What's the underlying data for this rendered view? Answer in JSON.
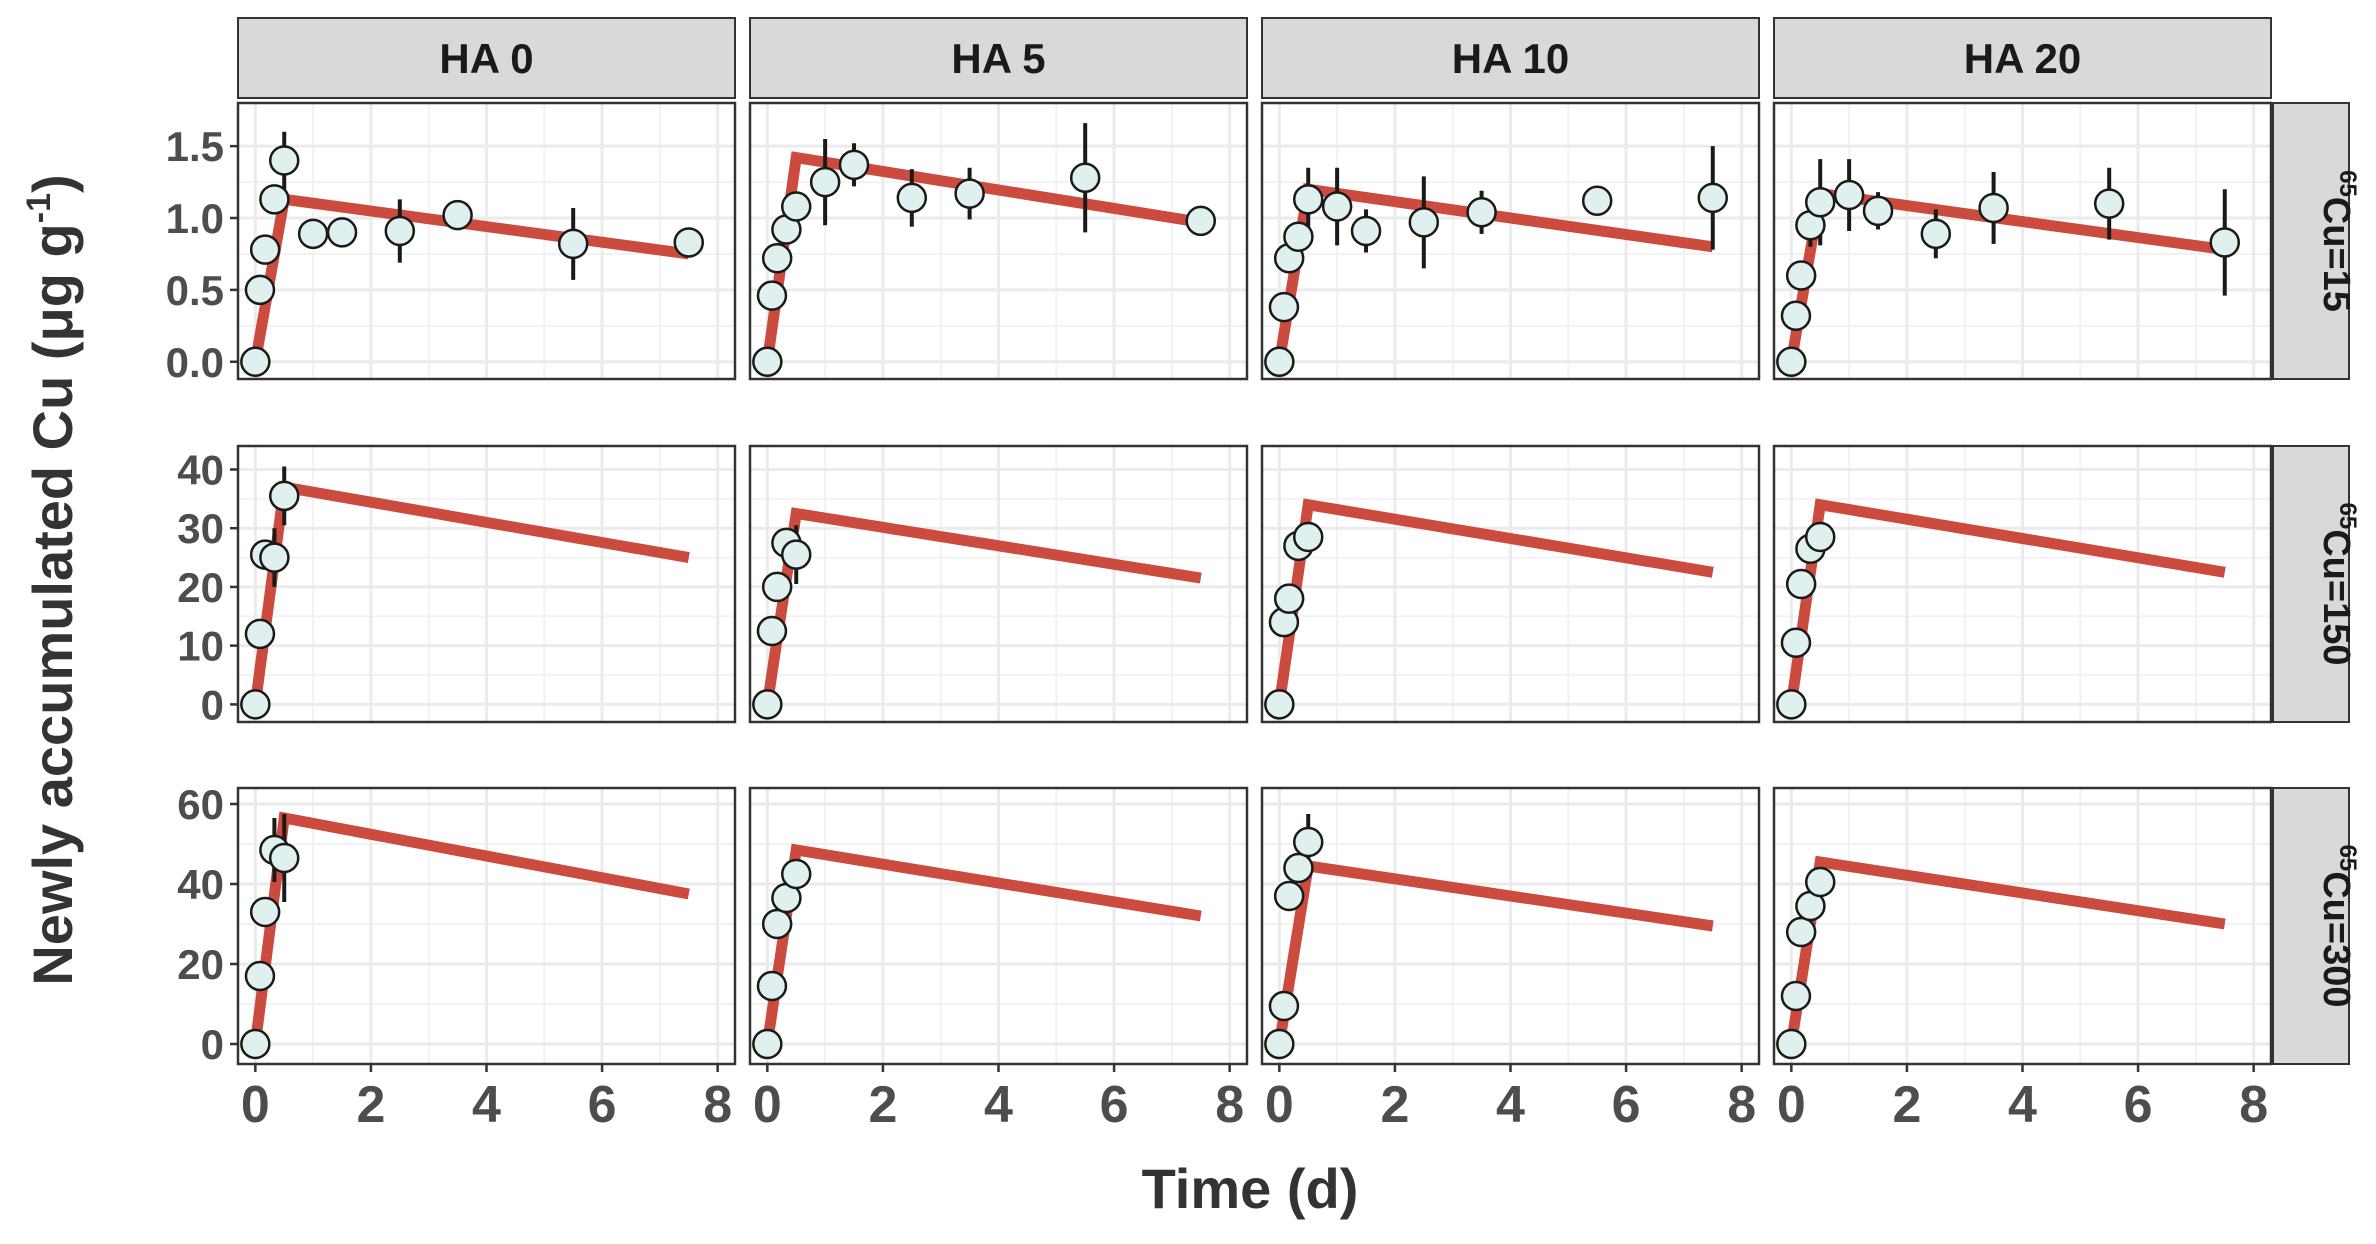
{
  "chart_data": {
    "type": "scatter",
    "xlabel": "Time (d)",
    "ylabel_main": "Newly accumulated Cu (μg g",
    "ylabel_sup": "-1",
    "ylabel_end": ")",
    "xlim": [
      -0.3,
      8.3
    ],
    "x_ticks": [
      0,
      2,
      4,
      6,
      8
    ],
    "columns": [
      "HA 0",
      "HA 5",
      "HA 10",
      "HA 20"
    ],
    "rows": [
      {
        "sup": "65",
        "label": "Cu=15",
        "ylim": [
          -0.12,
          1.8
        ],
        "ticks": [
          0.0,
          0.5,
          1.0,
          1.5
        ],
        "tick_labels": [
          "0.0",
          "0.5",
          "1.0",
          "1.5"
        ]
      },
      {
        "sup": "65",
        "label": "Cu=150",
        "ylim": [
          -3,
          44
        ],
        "ticks": [
          0,
          10,
          20,
          30,
          40
        ],
        "tick_labels": [
          "0",
          "10",
          "20",
          "30",
          "40"
        ]
      },
      {
        "sup": "65",
        "label": "Cu=300",
        "ylim": [
          -5,
          64
        ],
        "ticks": [
          0,
          20,
          40,
          60
        ],
        "tick_labels": [
          "0",
          "20",
          "40",
          "60"
        ]
      }
    ],
    "line_color": "#cc4b3f",
    "point_fill": "#dff0ef",
    "panels": [
      {
        "row": 0,
        "col": 0,
        "points": [
          {
            "x": 0,
            "y": 0,
            "err": 0
          },
          {
            "x": 0.08,
            "y": 0.5,
            "err": 0
          },
          {
            "x": 0.17,
            "y": 0.78,
            "err": 0
          },
          {
            "x": 0.33,
            "y": 1.13,
            "err": 0.05
          },
          {
            "x": 0.5,
            "y": 1.4,
            "err": 0.2
          },
          {
            "x": 1,
            "y": 0.89,
            "err": 0
          },
          {
            "x": 1.5,
            "y": 0.9,
            "err": 0
          },
          {
            "x": 2.5,
            "y": 0.91,
            "err": 0.22
          },
          {
            "x": 3.5,
            "y": 1.02,
            "err": 0
          },
          {
            "x": 5.5,
            "y": 0.82,
            "err": 0.25
          },
          {
            "x": 7.5,
            "y": 0.83,
            "err": 0
          }
        ],
        "model": [
          {
            "x": 0,
            "y": 0
          },
          {
            "x": 0.5,
            "y": 1.13
          },
          {
            "x": 7.5,
            "y": 0.75
          }
        ]
      },
      {
        "row": 0,
        "col": 1,
        "points": [
          {
            "x": 0,
            "y": 0,
            "err": 0
          },
          {
            "x": 0.08,
            "y": 0.46,
            "err": 0
          },
          {
            "x": 0.17,
            "y": 0.72,
            "err": 0
          },
          {
            "x": 0.33,
            "y": 0.92,
            "err": 0
          },
          {
            "x": 0.5,
            "y": 1.08,
            "err": 0
          },
          {
            "x": 1,
            "y": 1.25,
            "err": 0.3
          },
          {
            "x": 1.5,
            "y": 1.37,
            "err": 0.15
          },
          {
            "x": 2.5,
            "y": 1.14,
            "err": 0.2
          },
          {
            "x": 3.5,
            "y": 1.17,
            "err": 0.18
          },
          {
            "x": 5.5,
            "y": 1.28,
            "err": 0.38
          },
          {
            "x": 7.5,
            "y": 0.98,
            "err": 0
          }
        ],
        "model": [
          {
            "x": 0,
            "y": 0
          },
          {
            "x": 0.5,
            "y": 1.42
          },
          {
            "x": 7.5,
            "y": 0.97
          }
        ]
      },
      {
        "row": 0,
        "col": 2,
        "points": [
          {
            "x": 0,
            "y": 0,
            "err": 0
          },
          {
            "x": 0.08,
            "y": 0.38,
            "err": 0
          },
          {
            "x": 0.17,
            "y": 0.72,
            "err": 0
          },
          {
            "x": 0.33,
            "y": 0.87,
            "err": 0
          },
          {
            "x": 0.5,
            "y": 1.13,
            "err": 0.22
          },
          {
            "x": 1,
            "y": 1.08,
            "err": 0.27
          },
          {
            "x": 1.5,
            "y": 0.91,
            "err": 0.15
          },
          {
            "x": 2.5,
            "y": 0.97,
            "err": 0.32
          },
          {
            "x": 3.5,
            "y": 1.04,
            "err": 0.15
          },
          {
            "x": 5.5,
            "y": 1.12,
            "err": 0
          },
          {
            "x": 7.5,
            "y": 1.14,
            "err": 0.36
          }
        ],
        "model": [
          {
            "x": 0,
            "y": 0
          },
          {
            "x": 0.5,
            "y": 1.2
          },
          {
            "x": 7.5,
            "y": 0.8
          }
        ]
      },
      {
        "row": 0,
        "col": 3,
        "points": [
          {
            "x": 0,
            "y": 0,
            "err": 0
          },
          {
            "x": 0.08,
            "y": 0.32,
            "err": 0
          },
          {
            "x": 0.17,
            "y": 0.6,
            "err": 0
          },
          {
            "x": 0.33,
            "y": 0.95,
            "err": 0.15
          },
          {
            "x": 0.5,
            "y": 1.11,
            "err": 0.3
          },
          {
            "x": 1,
            "y": 1.16,
            "err": 0.25
          },
          {
            "x": 1.5,
            "y": 1.05,
            "err": 0.13
          },
          {
            "x": 2.5,
            "y": 0.89,
            "err": 0.17
          },
          {
            "x": 3.5,
            "y": 1.07,
            "err": 0.25
          },
          {
            "x": 5.5,
            "y": 1.1,
            "err": 0.25
          },
          {
            "x": 7.5,
            "y": 0.83,
            "err": 0.37
          }
        ],
        "model": [
          {
            "x": 0,
            "y": 0
          },
          {
            "x": 0.5,
            "y": 1.17
          },
          {
            "x": 7.5,
            "y": 0.78
          }
        ]
      },
      {
        "row": 1,
        "col": 0,
        "points": [
          {
            "x": 0,
            "y": 0,
            "err": 0
          },
          {
            "x": 0.08,
            "y": 12,
            "err": 0
          },
          {
            "x": 0.17,
            "y": 25.5,
            "err": 0
          },
          {
            "x": 0.33,
            "y": 25,
            "err": 5
          },
          {
            "x": 0.5,
            "y": 35.5,
            "err": 5
          }
        ],
        "model": [
          {
            "x": 0,
            "y": 0
          },
          {
            "x": 0.5,
            "y": 37
          },
          {
            "x": 7.5,
            "y": 25
          }
        ]
      },
      {
        "row": 1,
        "col": 1,
        "points": [
          {
            "x": 0,
            "y": 0,
            "err": 0
          },
          {
            "x": 0.08,
            "y": 12.5,
            "err": 0
          },
          {
            "x": 0.17,
            "y": 20,
            "err": 0
          },
          {
            "x": 0.33,
            "y": 27.5,
            "err": 0
          },
          {
            "x": 0.5,
            "y": 25.5,
            "err": 5
          }
        ],
        "model": [
          {
            "x": 0,
            "y": 0
          },
          {
            "x": 0.5,
            "y": 32.5
          },
          {
            "x": 7.5,
            "y": 21.5
          }
        ]
      },
      {
        "row": 1,
        "col": 2,
        "points": [
          {
            "x": 0,
            "y": 0,
            "err": 0
          },
          {
            "x": 0.08,
            "y": 14,
            "err": 0
          },
          {
            "x": 0.17,
            "y": 18,
            "err": 0
          },
          {
            "x": 0.33,
            "y": 27,
            "err": 0
          },
          {
            "x": 0.5,
            "y": 28.5,
            "err": 0
          }
        ],
        "model": [
          {
            "x": 0,
            "y": 0
          },
          {
            "x": 0.5,
            "y": 34
          },
          {
            "x": 7.5,
            "y": 22.5
          }
        ]
      },
      {
        "row": 1,
        "col": 3,
        "points": [
          {
            "x": 0,
            "y": 0,
            "err": 0
          },
          {
            "x": 0.08,
            "y": 10.5,
            "err": 0
          },
          {
            "x": 0.17,
            "y": 20.5,
            "err": 0
          },
          {
            "x": 0.33,
            "y": 26.5,
            "err": 0
          },
          {
            "x": 0.5,
            "y": 28.5,
            "err": 0
          }
        ],
        "model": [
          {
            "x": 0,
            "y": 0
          },
          {
            "x": 0.5,
            "y": 34
          },
          {
            "x": 7.5,
            "y": 22.5
          }
        ]
      },
      {
        "row": 2,
        "col": 0,
        "points": [
          {
            "x": 0,
            "y": 0,
            "err": 0
          },
          {
            "x": 0.08,
            "y": 17,
            "err": 0
          },
          {
            "x": 0.17,
            "y": 33,
            "err": 0
          },
          {
            "x": 0.33,
            "y": 48.5,
            "err": 8
          },
          {
            "x": 0.5,
            "y": 46.5,
            "err": 11
          }
        ],
        "model": [
          {
            "x": 0,
            "y": 0
          },
          {
            "x": 0.5,
            "y": 56.5
          },
          {
            "x": 7.5,
            "y": 37.5
          }
        ]
      },
      {
        "row": 2,
        "col": 1,
        "points": [
          {
            "x": 0,
            "y": 0,
            "err": 0
          },
          {
            "x": 0.08,
            "y": 14.5,
            "err": 0
          },
          {
            "x": 0.17,
            "y": 30,
            "err": 0
          },
          {
            "x": 0.33,
            "y": 36.5,
            "err": 0
          },
          {
            "x": 0.5,
            "y": 42.5,
            "err": 0
          }
        ],
        "model": [
          {
            "x": 0,
            "y": 0
          },
          {
            "x": 0.5,
            "y": 48.5
          },
          {
            "x": 7.5,
            "y": 32
          }
        ]
      },
      {
        "row": 2,
        "col": 2,
        "points": [
          {
            "x": 0,
            "y": 0,
            "err": 0
          },
          {
            "x": 0.08,
            "y": 9.5,
            "err": 0
          },
          {
            "x": 0.17,
            "y": 37,
            "err": 0
          },
          {
            "x": 0.33,
            "y": 44,
            "err": 0
          },
          {
            "x": 0.5,
            "y": 50.5,
            "err": 7
          }
        ],
        "model": [
          {
            "x": 0,
            "y": 0
          },
          {
            "x": 0.5,
            "y": 44.5
          },
          {
            "x": 7.5,
            "y": 29.5
          }
        ]
      },
      {
        "row": 2,
        "col": 3,
        "points": [
          {
            "x": 0,
            "y": 0,
            "err": 0
          },
          {
            "x": 0.08,
            "y": 12,
            "err": 0
          },
          {
            "x": 0.17,
            "y": 28,
            "err": 0
          },
          {
            "x": 0.33,
            "y": 34.5,
            "err": 0
          },
          {
            "x": 0.5,
            "y": 40.5,
            "err": 0
          }
        ],
        "model": [
          {
            "x": 0,
            "y": 0
          },
          {
            "x": 0.5,
            "y": 45.5
          },
          {
            "x": 7.5,
            "y": 30
          }
        ]
      }
    ]
  }
}
